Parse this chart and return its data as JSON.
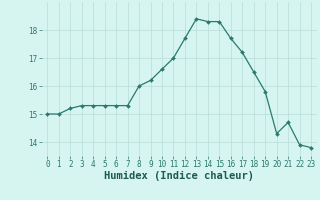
{
  "x": [
    0,
    1,
    2,
    3,
    4,
    5,
    6,
    7,
    8,
    9,
    10,
    11,
    12,
    13,
    14,
    15,
    16,
    17,
    18,
    19,
    20,
    21,
    22,
    23
  ],
  "y": [
    15.0,
    15.0,
    15.2,
    15.3,
    15.3,
    15.3,
    15.3,
    15.3,
    16.0,
    16.2,
    16.6,
    17.0,
    17.7,
    18.4,
    18.3,
    18.3,
    17.7,
    17.2,
    16.5,
    15.8,
    14.3,
    14.7,
    13.9,
    13.8
  ],
  "xlabel": "Humidex (Indice chaleur)",
  "ylim": [
    13.5,
    19.0
  ],
  "xlim": [
    -0.5,
    23.5
  ],
  "yticks": [
    14,
    15,
    16,
    17,
    18
  ],
  "xticks": [
    0,
    1,
    2,
    3,
    4,
    5,
    6,
    7,
    8,
    9,
    10,
    11,
    12,
    13,
    14,
    15,
    16,
    17,
    18,
    19,
    20,
    21,
    22,
    23
  ],
  "line_color": "#2a7a6e",
  "marker_color": "#2a7a6e",
  "bg_color": "#d6f5f0",
  "grid_color": "#b8ddd8",
  "tick_label_fontsize": 5.5,
  "xlabel_fontsize": 7.5
}
